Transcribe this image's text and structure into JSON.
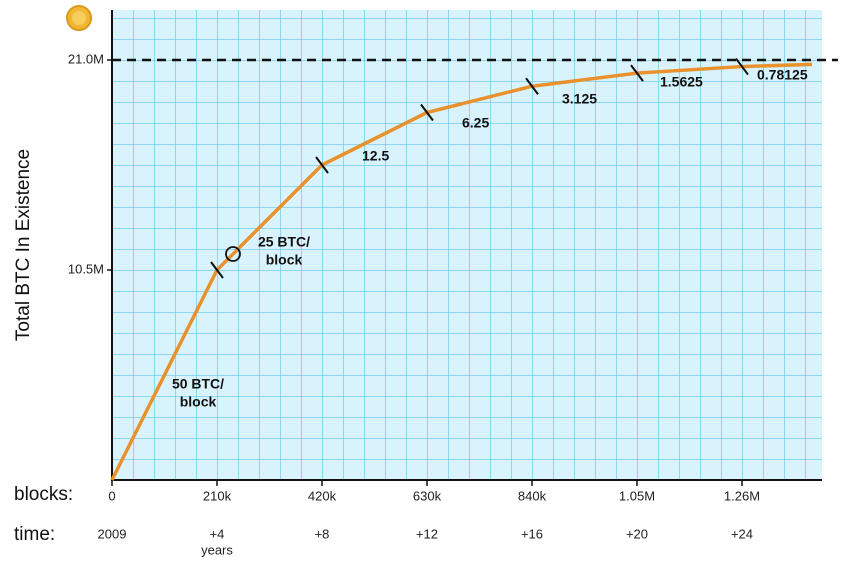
{
  "chart_data": {
    "type": "line",
    "y_label": "Total BTC In Existence",
    "x_label": "blocks:",
    "time_label": "time:",
    "x": [
      0,
      210000,
      420000,
      630000,
      840000,
      1050000,
      1260000,
      1400000
    ],
    "series": [
      {
        "color": "#e8912d",
        "values": [
          0,
          10500000,
          15750000,
          18375000,
          19687500,
          20343750,
          20671875,
          20781250
        ]
      }
    ],
    "xlim": [
      0,
      1420000
    ],
    "ylim": [
      0,
      23500000
    ],
    "xticks": [
      0,
      {
        "value": 210000,
        "label": "210k"
      },
      {
        "value": 420000,
        "label": "420k"
      },
      {
        "value": 630000,
        "label": "630k"
      },
      {
        "value": 840000,
        "label": "840k"
      },
      {
        "value": 1050000,
        "label": "1.05M"
      },
      {
        "value": 1260000,
        "label": "1.26M"
      }
    ],
    "yticks": [
      {
        "value": 10500000,
        "label": "10.5M"
      },
      {
        "value": 21000000,
        "label": "21.0M"
      }
    ],
    "time_ticks": [
      "2009",
      "+4",
      "+8",
      "+12",
      "+16",
      "+20",
      "+24"
    ],
    "time_unit": "years",
    "reward_labels": [
      [
        "50 BTC/",
        "block"
      ],
      [
        "25 BTC/",
        "block"
      ],
      [
        "12.5"
      ],
      [
        "6.25"
      ],
      [
        "3.125"
      ],
      [
        "1.5625"
      ],
      [
        "0.78125"
      ]
    ],
    "grid": true
  }
}
